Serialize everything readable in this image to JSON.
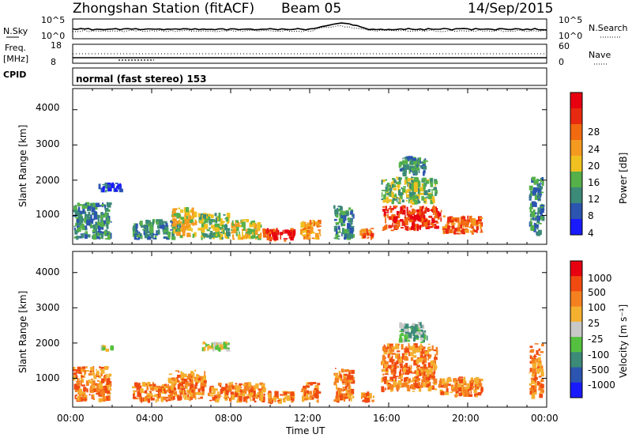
{
  "header": {
    "title": "Zhongshan Station (fitACF)",
    "beam": "Beam 05",
    "date": "14/Sep/2015"
  },
  "strip_nsky": {
    "left_label": "N.Sky",
    "left_ticks": [
      "10^5",
      "10^0"
    ],
    "right_ticks": [
      "10^5",
      "10^0"
    ],
    "right_label": "N.Search"
  },
  "strip_freq": {
    "left_label_1": "Freq.",
    "left_label_2": "[MHz]",
    "left_ticks": [
      "18",
      "8"
    ],
    "right_ticks": [
      "60",
      "0"
    ],
    "right_label": "Nave"
  },
  "strip_cpid": {
    "left_label": "CPID",
    "text": "normal (fast stereo) 153"
  },
  "x_axis": {
    "label": "Time UT",
    "ticks": [
      "00:00",
      "04:00",
      "08:00",
      "12:00",
      "16:00",
      "20:00",
      "00:00"
    ]
  },
  "power_panel": {
    "ylabel": "Slant Range [km]",
    "yticks": [
      "4000",
      "3000",
      "2000",
      "1000"
    ],
    "colorbar_label": "Power [dB]",
    "colorbar_ticks": [
      "28",
      "24",
      "20",
      "16",
      "12",
      "8",
      "4"
    ]
  },
  "velocity_panel": {
    "ylabel": "Slant Range [km]",
    "yticks": [
      "4000",
      "3000",
      "2000",
      "1000"
    ],
    "colorbar_label": "Velocity [m s⁻¹]",
    "colorbar_ticks": [
      "1000",
      "500",
      "100",
      "25",
      "-25",
      "-100",
      "-500",
      "-1000"
    ]
  },
  "colors": {
    "power_scale": [
      "#1a1aff",
      "#2b55b0",
      "#3c8a78",
      "#55b04a",
      "#f0c020",
      "#f59a20",
      "#f26a10",
      "#e82a10",
      "#e80010"
    ],
    "velocity_scale": [
      "#1a1aff",
      "#2b55b0",
      "#3c8a78",
      "#55c040",
      "#c8c8c8",
      "#f5b030",
      "#f58020",
      "#f04a10",
      "#e80010"
    ]
  },
  "chart_data": [
    {
      "type": "heatmap",
      "name": "power",
      "x_range": [
        "00:00",
        "24:00"
      ],
      "ylim": [
        180,
        4600
      ],
      "patches": [
        {
          "x": [
            0.0,
            2.0
          ],
          "y": [
            300,
            1400
          ],
          "level": 2
        },
        {
          "x": [
            1.3,
            2.6
          ],
          "y": [
            1650,
            1950
          ],
          "level": 1
        },
        {
          "x": [
            3.0,
            5.5
          ],
          "y": [
            300,
            900
          ],
          "level": 2
        },
        {
          "x": [
            5.0,
            6.3
          ],
          "y": [
            350,
            1250
          ],
          "level": 4
        },
        {
          "x": [
            6.3,
            8.0
          ],
          "y": [
            300,
            1100
          ],
          "level": 3
        },
        {
          "x": [
            8.0,
            9.6
          ],
          "y": [
            300,
            900
          ],
          "level": 4
        },
        {
          "x": [
            9.6,
            11.3
          ],
          "y": [
            250,
            650
          ],
          "level": 7
        },
        {
          "x": [
            11.5,
            12.6
          ],
          "y": [
            300,
            900
          ],
          "level": 5
        },
        {
          "x": [
            13.2,
            14.3
          ],
          "y": [
            300,
            1300
          ],
          "level": 2
        },
        {
          "x": [
            14.5,
            15.3
          ],
          "y": [
            300,
            650
          ],
          "level": 6
        },
        {
          "x": [
            15.6,
            18.7
          ],
          "y": [
            550,
            1300
          ],
          "level": 7
        },
        {
          "x": [
            15.6,
            18.5
          ],
          "y": [
            1300,
            2100
          ],
          "level": 3
        },
        {
          "x": [
            16.5,
            18.0
          ],
          "y": [
            2100,
            2700
          ],
          "level": 2
        },
        {
          "x": [
            18.7,
            20.8
          ],
          "y": [
            450,
            1000
          ],
          "level": 6
        },
        {
          "x": [
            23.1,
            23.9
          ],
          "y": [
            400,
            2100
          ],
          "level": 2
        }
      ]
    },
    {
      "type": "heatmap",
      "name": "velocity",
      "x_range": [
        "00:00",
        "24:00"
      ],
      "ylim": [
        180,
        4600
      ],
      "patches": [
        {
          "x": [
            0.0,
            2.0
          ],
          "y": [
            300,
            1350
          ],
          "level": 6
        },
        {
          "x": [
            1.4,
            2.1
          ],
          "y": [
            1750,
            1950
          ],
          "level": 4
        },
        {
          "x": [
            3.0,
            5.2
          ],
          "y": [
            300,
            900
          ],
          "level": 6
        },
        {
          "x": [
            4.8,
            6.8
          ],
          "y": [
            350,
            1250
          ],
          "level": 6
        },
        {
          "x": [
            6.8,
            9.8
          ],
          "y": [
            300,
            900
          ],
          "level": 6
        },
        {
          "x": [
            6.5,
            8.0
          ],
          "y": [
            1750,
            2050
          ],
          "level": 4
        },
        {
          "x": [
            9.8,
            11.3
          ],
          "y": [
            250,
            650
          ],
          "level": 6
        },
        {
          "x": [
            11.5,
            12.6
          ],
          "y": [
            300,
            900
          ],
          "level": 6
        },
        {
          "x": [
            13.2,
            14.3
          ],
          "y": [
            300,
            1300
          ],
          "level": 6
        },
        {
          "x": [
            14.5,
            15.3
          ],
          "y": [
            300,
            650
          ],
          "level": 6
        },
        {
          "x": [
            15.6,
            18.5
          ],
          "y": [
            600,
            2000
          ],
          "level": 6
        },
        {
          "x": [
            16.5,
            18.0
          ],
          "y": [
            2000,
            2600
          ],
          "level": 3
        },
        {
          "x": [
            18.5,
            20.8
          ],
          "y": [
            450,
            1050
          ],
          "level": 6
        },
        {
          "x": [
            23.1,
            23.9
          ],
          "y": [
            400,
            2000
          ],
          "level": 6
        }
      ]
    }
  ]
}
